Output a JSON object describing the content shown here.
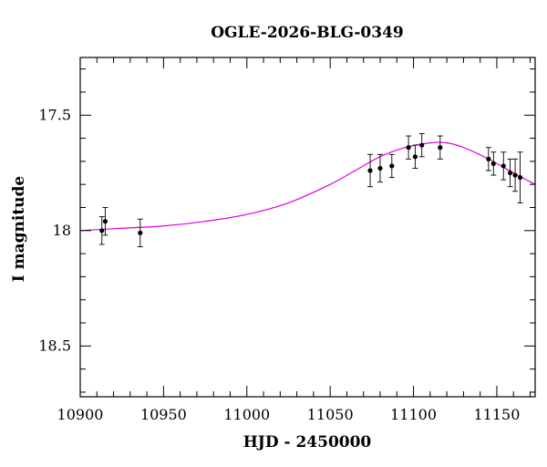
{
  "chart_data": {
    "type": "scatter",
    "title": "OGLE-2026-BLG-0349",
    "xlabel": "HJD - 2450000",
    "ylabel": "I magnitude",
    "xlim": [
      10900,
      11173
    ],
    "ylim": [
      18.72,
      17.25
    ],
    "y_inverted": true,
    "grid": false,
    "xticks": [
      10900,
      10950,
      11000,
      11050,
      11100,
      11150
    ],
    "xtick_labels": [
      "10900",
      "10950",
      "11000",
      "11050",
      "11100",
      "11150"
    ],
    "yticks": [
      17.5,
      18,
      18.5
    ],
    "ytick_labels": [
      "17.5",
      "18",
      "18.5"
    ],
    "colors": {
      "model": "#e000e0",
      "points": "#000000",
      "axes": "#000000"
    },
    "series": [
      {
        "kind": "points_with_errorbars",
        "points": [
          {
            "x": 10913,
            "y": 18.0,
            "err": 0.06
          },
          {
            "x": 10915,
            "y": 17.96,
            "err": 0.06
          },
          {
            "x": 10936,
            "y": 18.01,
            "err": 0.06
          },
          {
            "x": 11074,
            "y": 17.74,
            "err": 0.07
          },
          {
            "x": 11080,
            "y": 17.73,
            "err": 0.06
          },
          {
            "x": 11087,
            "y": 17.72,
            "err": 0.05
          },
          {
            "x": 11097,
            "y": 17.64,
            "err": 0.05
          },
          {
            "x": 11101,
            "y": 17.68,
            "err": 0.05
          },
          {
            "x": 11105,
            "y": 17.63,
            "err": 0.05
          },
          {
            "x": 11116,
            "y": 17.64,
            "err": 0.05
          },
          {
            "x": 11145,
            "y": 17.69,
            "err": 0.05
          },
          {
            "x": 11148,
            "y": 17.71,
            "err": 0.05
          },
          {
            "x": 11154,
            "y": 17.72,
            "err": 0.06
          },
          {
            "x": 11158,
            "y": 17.75,
            "err": 0.06
          },
          {
            "x": 11161,
            "y": 17.76,
            "err": 0.07
          },
          {
            "x": 11164,
            "y": 17.77,
            "err": 0.11
          }
        ]
      },
      {
        "kind": "model_curve",
        "x": [
          10900,
          10925,
          10950,
          10975,
          11000,
          11025,
          11050,
          11065,
          11080,
          11095,
          11110,
          11120,
          11130,
          11145,
          11160,
          11173
        ],
        "y": [
          18.0,
          17.99,
          17.98,
          17.96,
          17.93,
          17.88,
          17.8,
          17.74,
          17.68,
          17.64,
          17.62,
          17.62,
          17.64,
          17.69,
          17.75,
          17.8
        ]
      }
    ]
  }
}
